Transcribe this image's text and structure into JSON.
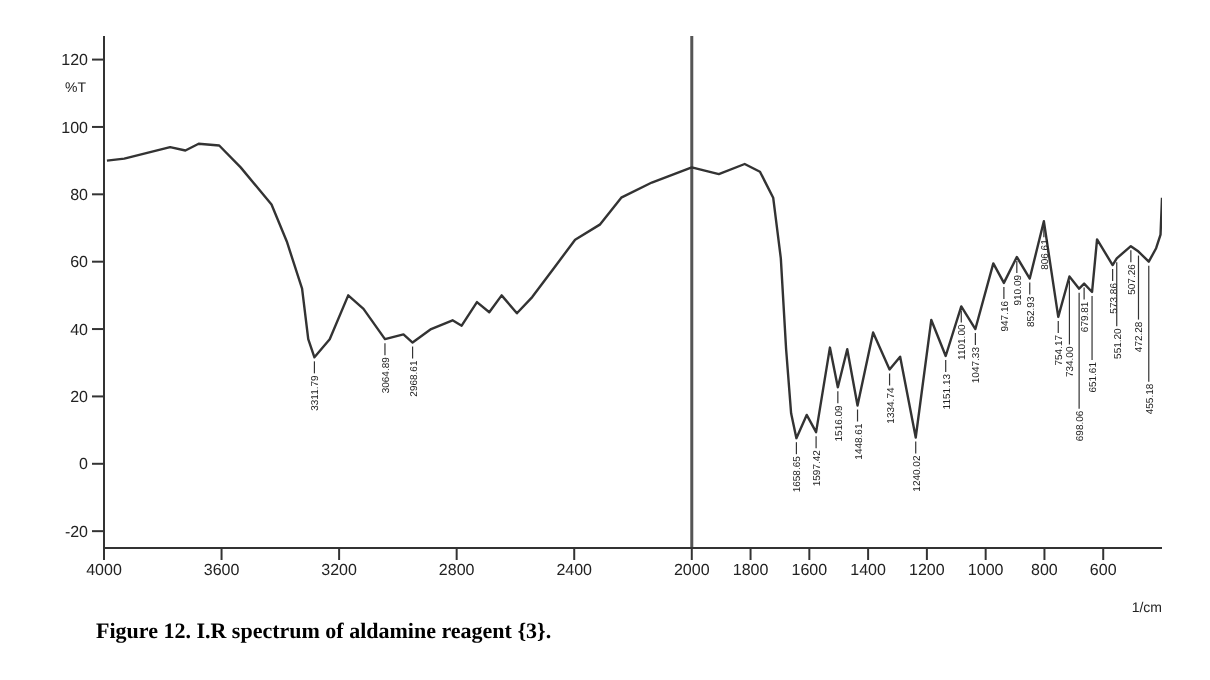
{
  "chart_data": {
    "type": "line",
    "title": "Figure 12. I.R spectrum of aldamine reagent {3}.",
    "xlabel": "1/cm",
    "ylabel": "%T",
    "x": [
      3990,
      3931,
      3775,
      3723,
      3678,
      3608,
      3535,
      3430,
      3378,
      3326,
      3305,
      3284,
      3232,
      3169,
      3117,
      3044,
      2981,
      2950,
      2887,
      2814,
      2783,
      2731,
      2689,
      2647,
      2595,
      2543,
      2470,
      2397,
      2313,
      2240,
      2136,
      2000,
      1908,
      1820,
      1768,
      1723,
      1697,
      1679,
      1662,
      1644,
      1609,
      1577,
      1530,
      1503,
      1471,
      1436,
      1383,
      1327,
      1291,
      1238,
      1185,
      1136,
      1083,
      1035,
      974,
      938,
      894,
      850,
      802,
      753,
      715,
      682,
      665,
      638,
      621,
      568,
      554,
      506,
      480,
      445,
      420,
      405,
      400
    ],
    "series": [
      {
        "color": "#333333",
        "values": [
          90,
          90.6,
          94,
          93,
          95,
          94.5,
          88,
          77,
          66,
          52,
          37,
          31.6,
          37,
          50,
          46,
          37,
          38.4,
          36,
          40,
          42.6,
          41,
          48,
          45,
          50,
          44.7,
          49.5,
          58,
          66.5,
          71,
          79,
          83.5,
          88,
          86,
          89,
          86.7,
          79,
          61,
          34,
          15,
          7.6,
          14.5,
          9.4,
          34.5,
          22.7,
          34,
          17.3,
          39,
          28,
          31.8,
          7.8,
          42.7,
          32,
          46.7,
          40,
          59.5,
          53.7,
          61.4,
          55,
          72,
          43.6,
          55.6,
          52,
          53.5,
          51,
          66.6,
          59,
          61,
          64.6,
          63,
          60,
          64,
          68,
          79
        ]
      }
    ],
    "xlim": [
      4000,
      400
    ],
    "xticks": [
      4000,
      3600,
      3200,
      2800,
      2400,
      2000,
      1800,
      1600,
      1400,
      1200,
      1000,
      800,
      600
    ],
    "ylim": [
      -25,
      127
    ],
    "yticks": [
      -20,
      0,
      20,
      40,
      60,
      80,
      100,
      120
    ],
    "grid": false,
    "legend": false,
    "marker": "none",
    "line_style": "solid",
    "ref_lines": [
      {
        "axis": "x",
        "value": 2000,
        "color": "#555555"
      }
    ],
    "annotations": [
      {
        "text": "3311.79",
        "x": 3284,
        "y": 31.6
      },
      {
        "text": "3064.89",
        "x": 3044,
        "y": 37
      },
      {
        "text": "2968.61",
        "x": 2950,
        "y": 36
      },
      {
        "text": "1658.65",
        "x": 1644,
        "y": 7.6
      },
      {
        "text": "1597.42",
        "x": 1577,
        "y": 9.4
      },
      {
        "text": "1516.09",
        "x": 1503,
        "y": 22.7
      },
      {
        "text": "1448.61",
        "x": 1436,
        "y": 17.3
      },
      {
        "text": "1334.74",
        "x": 1327,
        "y": 28
      },
      {
        "text": "1240.02",
        "x": 1238,
        "y": 7.8
      },
      {
        "text": "1151.13",
        "x": 1136,
        "y": 32
      },
      {
        "text": "1101.00",
        "x": 1083,
        "y": 46.7
      },
      {
        "text": "1047.33",
        "x": 1035,
        "y": 40
      },
      {
        "text": "947.16",
        "x": 938,
        "y": 53.7
      },
      {
        "text": "910.09",
        "x": 894,
        "y": 61.4
      },
      {
        "text": "852.93",
        "x": 850,
        "y": 55
      },
      {
        "text": "806.61",
        "x": 802,
        "y": 72
      },
      {
        "text": "754.17",
        "x": 753,
        "y": 43.6
      },
      {
        "text": "734.00",
        "x": 715,
        "y": 55.6
      },
      {
        "text": "698.06",
        "x": 682,
        "y": 52
      },
      {
        "text": "679.81",
        "x": 665,
        "y": 53.5
      },
      {
        "text": "651.61",
        "x": 638,
        "y": 51
      },
      {
        "text": "573.86",
        "x": 568,
        "y": 59
      },
      {
        "text": "551.20",
        "x": 554,
        "y": 61
      },
      {
        "text": "507.26",
        "x": 506,
        "y": 64.6
      },
      {
        "text": "472.28",
        "x": 480,
        "y": 63
      },
      {
        "text": "455.18",
        "x": 445,
        "y": 60
      }
    ]
  }
}
